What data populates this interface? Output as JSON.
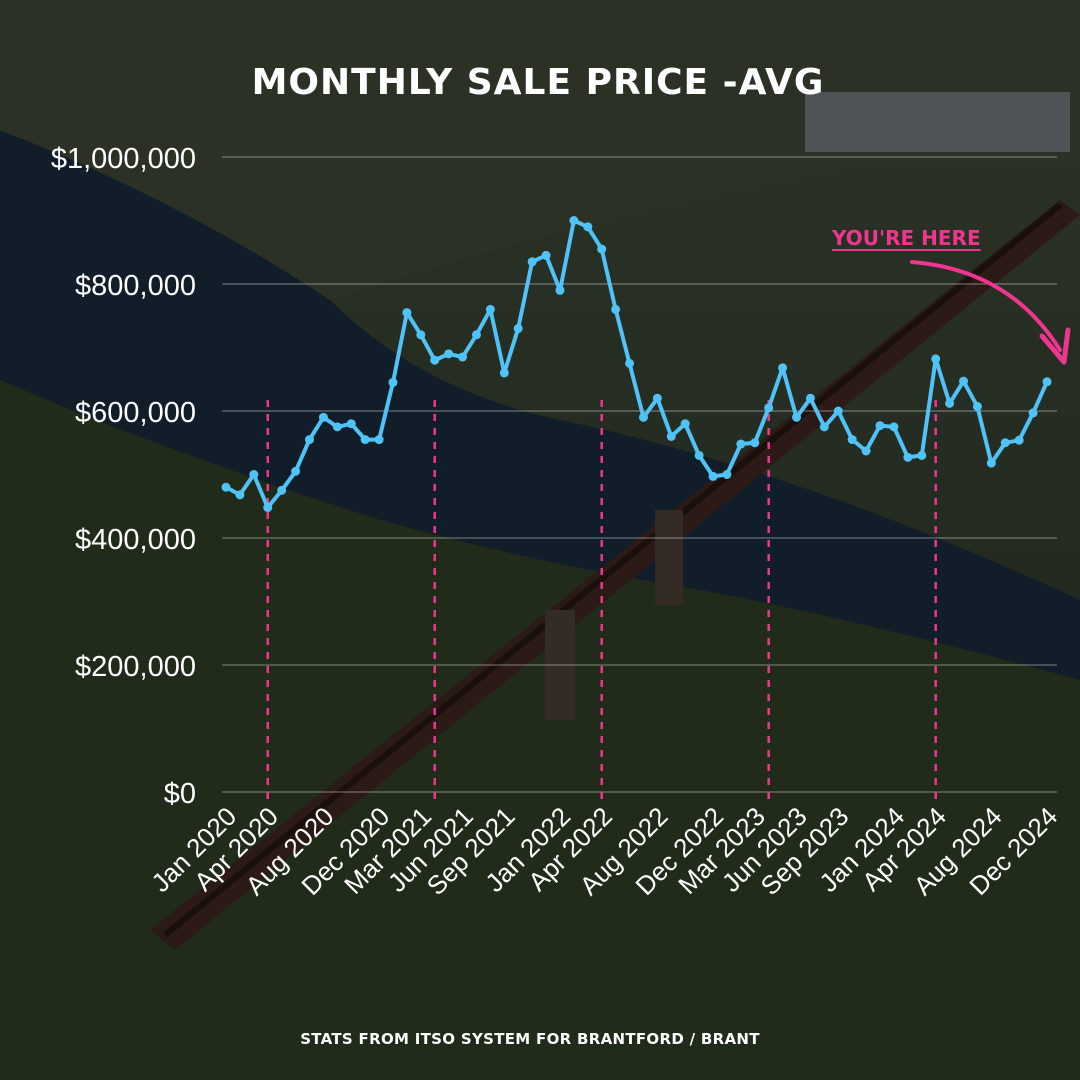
{
  "title": "MONTHLY SALE PRICE -AVG",
  "footer": "STATS FROM ITSO SYSTEM FOR BRANTFORD / BRANT",
  "annotation": "YOU'RE HERE",
  "colors": {
    "line": "#4fc3f7",
    "marker_lines": "#f0358f",
    "annotation": "#f0358f",
    "text": "#ffffff"
  },
  "chart_data": {
    "type": "line",
    "title": "MONTHLY SALE PRICE -AVG",
    "xlabel": "",
    "ylabel": "",
    "ylim": [
      0,
      1000000
    ],
    "yticks": [
      "$0",
      "$200,000",
      "$400,000",
      "$600,000",
      "$800,000",
      "$1,000,000"
    ],
    "ytick_values": [
      0,
      200000,
      400000,
      600000,
      800000,
      1000000
    ],
    "grid": true,
    "xtick_labels": [
      "Jan 2020",
      "Apr 2020",
      "Aug 2020",
      "Dec 2020",
      "Mar 2021",
      "Jun 2021",
      "Sep 2021",
      "Jan 2022",
      "Apr 2022",
      "Aug 2022",
      "Dec 2022",
      "Mar 2023",
      "Jun 2023",
      "Sep 2023",
      "Jan 2024",
      "Apr 2024",
      "Aug 2024",
      "Dec 2024"
    ],
    "vertical_markers": [
      "Apr 2020",
      "Apr 2021",
      "Apr 2022",
      "Apr 2023",
      "Apr 2024"
    ],
    "x": [
      "Jan 2020",
      "Feb 2020",
      "Mar 2020",
      "Apr 2020",
      "May 2020",
      "Jun 2020",
      "Jul 2020",
      "Aug 2020",
      "Sep 2020",
      "Oct 2020",
      "Nov 2020",
      "Dec 2020",
      "Jan 2021",
      "Feb 2021",
      "Mar 2021",
      "Apr 2021",
      "May 2021",
      "Jun 2021",
      "Jul 2021",
      "Aug 2021",
      "Sep 2021",
      "Oct 2021",
      "Nov 2021",
      "Dec 2021",
      "Jan 2022",
      "Feb 2022",
      "Mar 2022",
      "Apr 2022",
      "May 2022",
      "Jun 2022",
      "Jul 2022",
      "Aug 2022",
      "Sep 2022",
      "Oct 2022",
      "Nov 2022",
      "Dec 2022",
      "Jan 2023",
      "Feb 2023",
      "Mar 2023",
      "Apr 2023",
      "May 2023",
      "Jun 2023",
      "Jul 2023",
      "Aug 2023",
      "Sep 2023",
      "Oct 2023",
      "Nov 2023",
      "Dec 2023",
      "Jan 2024",
      "Feb 2024",
      "Mar 2024",
      "Apr 2024",
      "May 2024",
      "Jun 2024",
      "Jul 2024",
      "Aug 2024",
      "Sep 2024",
      "Oct 2024",
      "Nov 2024",
      "Dec 2024"
    ],
    "series": [
      {
        "values": [
          480000,
          468000,
          500000,
          448000,
          475000,
          505000,
          555000,
          590000,
          575000,
          580000,
          555000,
          555000,
          645000,
          755000,
          720000,
          680000,
          690000,
          685000,
          720000,
          760000,
          660000,
          730000,
          835000,
          845000,
          790000,
          900000,
          890000,
          855000,
          760000,
          675000,
          590000,
          620000,
          560000,
          580000,
          530000,
          497000,
          500000,
          548000,
          550000,
          605000,
          668000,
          590000,
          620000,
          575000,
          600000,
          555000,
          537000,
          577000,
          575000,
          527000,
          530000,
          682000,
          612000,
          647000,
          607000,
          518000,
          550000,
          554000,
          597000,
          646000
        ]
      }
    ]
  }
}
